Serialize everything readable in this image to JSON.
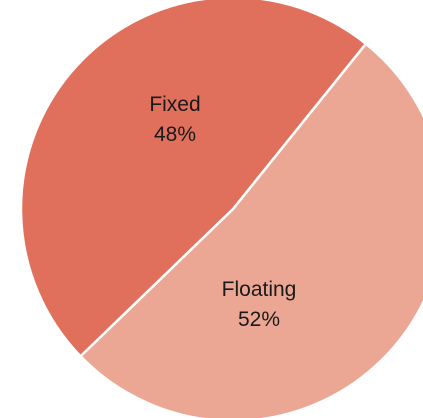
{
  "chart_data": {
    "type": "pie",
    "title": "",
    "slices": [
      {
        "label": "Fixed",
        "percent_label": "48%",
        "value": 48,
        "color": "#e0705c"
      },
      {
        "label": "Floating",
        "percent_label": "52%",
        "value": 52,
        "color": "#eba794"
      }
    ],
    "slice_border_color": "#ffffff",
    "legend": "none"
  }
}
